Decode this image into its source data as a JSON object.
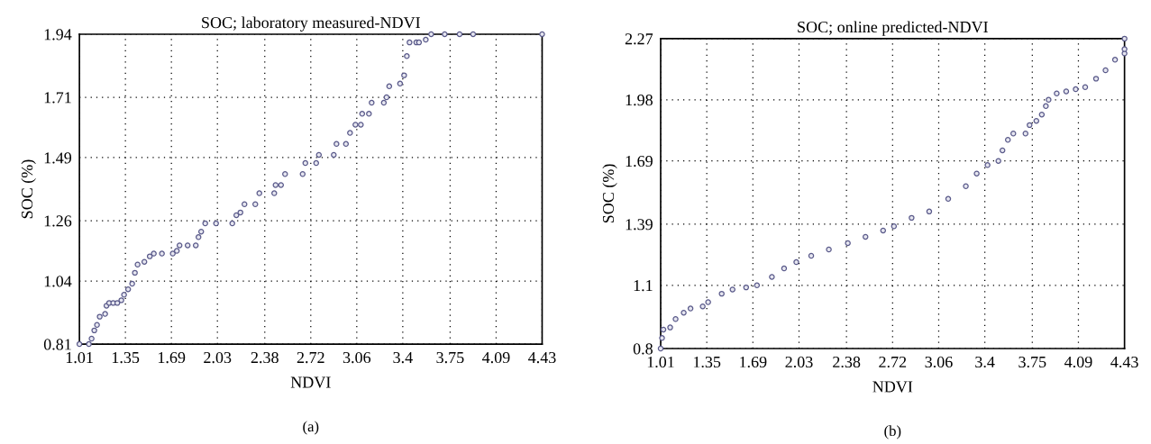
{
  "chart_data": [
    {
      "type": "scatter",
      "title": "SOC; laboratory measured-NDVI",
      "xlabel": "NDVI",
      "ylabel": "SOC (%)",
      "annotations": [
        "(a)"
      ],
      "marker": "circle",
      "grid": true,
      "xlim": [
        1.01,
        4.43
      ],
      "xticks": [
        1.01,
        1.35,
        1.69,
        2.03,
        2.38,
        2.72,
        3.06,
        3.4,
        3.75,
        4.09,
        4.43
      ],
      "ylim": [
        0.81,
        1.94
      ],
      "yticks": [
        0.81,
        1.04,
        1.26,
        1.49,
        1.71,
        1.94
      ],
      "series": [
        {
          "color": "#5a5a8a",
          "x": [
            1.01,
            1.08,
            1.1,
            1.12,
            1.14,
            1.16,
            1.2,
            1.21,
            1.23,
            1.26,
            1.29,
            1.32,
            1.34,
            1.37,
            1.4,
            1.42,
            1.44,
            1.49,
            1.53,
            1.56,
            1.62,
            1.7,
            1.73,
            1.75,
            1.81,
            1.87,
            1.89,
            1.91,
            1.94,
            2.02,
            2.14,
            2.17,
            2.2,
            2.23,
            2.31,
            2.34,
            2.45,
            2.46,
            2.5,
            2.53,
            2.66,
            2.68,
            2.76,
            2.78,
            2.89,
            2.91,
            2.98,
            3.01,
            3.05,
            3.09,
            3.1,
            3.15,
            3.17,
            3.26,
            3.28,
            3.3,
            3.38,
            3.41,
            3.43,
            3.45,
            3.5,
            3.52,
            3.57,
            3.61,
            3.71,
            3.82,
            3.92,
            4.43
          ],
          "values": [
            0.81,
            0.81,
            0.83,
            0.86,
            0.88,
            0.91,
            0.92,
            0.95,
            0.96,
            0.96,
            0.96,
            0.97,
            0.99,
            1.01,
            1.03,
            1.07,
            1.1,
            1.11,
            1.13,
            1.14,
            1.14,
            1.14,
            1.15,
            1.17,
            1.17,
            1.17,
            1.2,
            1.22,
            1.25,
            1.25,
            1.25,
            1.28,
            1.29,
            1.32,
            1.32,
            1.36,
            1.36,
            1.39,
            1.39,
            1.43,
            1.43,
            1.47,
            1.47,
            1.5,
            1.5,
            1.54,
            1.54,
            1.58,
            1.61,
            1.61,
            1.65,
            1.65,
            1.69,
            1.69,
            1.71,
            1.75,
            1.76,
            1.79,
            1.86,
            1.91,
            1.91,
            1.91,
            1.92,
            1.94,
            1.94,
            1.94,
            1.94,
            1.94
          ]
        }
      ]
    },
    {
      "type": "scatter",
      "title": "SOC; online predicted-NDVI",
      "xlabel": "NDVI",
      "ylabel": "SOC (%)",
      "annotations": [
        "(b)"
      ],
      "marker": "circle",
      "grid": true,
      "xlim": [
        1.01,
        4.43
      ],
      "xticks": [
        1.01,
        1.35,
        1.69,
        2.03,
        2.38,
        2.72,
        3.06,
        3.4,
        3.75,
        4.09,
        4.43
      ],
      "ylim": [
        0.8,
        2.27
      ],
      "yticks": [
        0.8,
        1.1,
        1.39,
        1.69,
        1.98,
        2.27
      ],
      "series": [
        {
          "color": "#5a5a8a",
          "x": [
            1.01,
            1.02,
            1.03,
            1.08,
            1.12,
            1.18,
            1.23,
            1.32,
            1.36,
            1.46,
            1.54,
            1.64,
            1.72,
            1.83,
            1.92,
            2.01,
            2.12,
            2.25,
            2.39,
            2.52,
            2.65,
            2.73,
            2.86,
            2.99,
            3.13,
            3.26,
            3.34,
            3.42,
            3.5,
            3.53,
            3.57,
            3.61,
            3.7,
            3.73,
            3.78,
            3.82,
            3.85,
            3.87,
            3.93,
            4.0,
            4.07,
            4.14,
            4.22,
            4.29,
            4.36,
            4.43,
            4.43,
            4.43
          ],
          "values": [
            0.8,
            0.85,
            0.89,
            0.9,
            0.94,
            0.97,
            0.99,
            1.0,
            1.02,
            1.06,
            1.08,
            1.09,
            1.1,
            1.14,
            1.18,
            1.21,
            1.24,
            1.27,
            1.3,
            1.33,
            1.36,
            1.38,
            1.42,
            1.45,
            1.51,
            1.57,
            1.63,
            1.67,
            1.69,
            1.74,
            1.79,
            1.82,
            1.82,
            1.86,
            1.88,
            1.91,
            1.95,
            1.98,
            2.01,
            2.02,
            2.03,
            2.04,
            2.08,
            2.12,
            2.17,
            2.2,
            2.22,
            2.27
          ]
        }
      ]
    }
  ]
}
